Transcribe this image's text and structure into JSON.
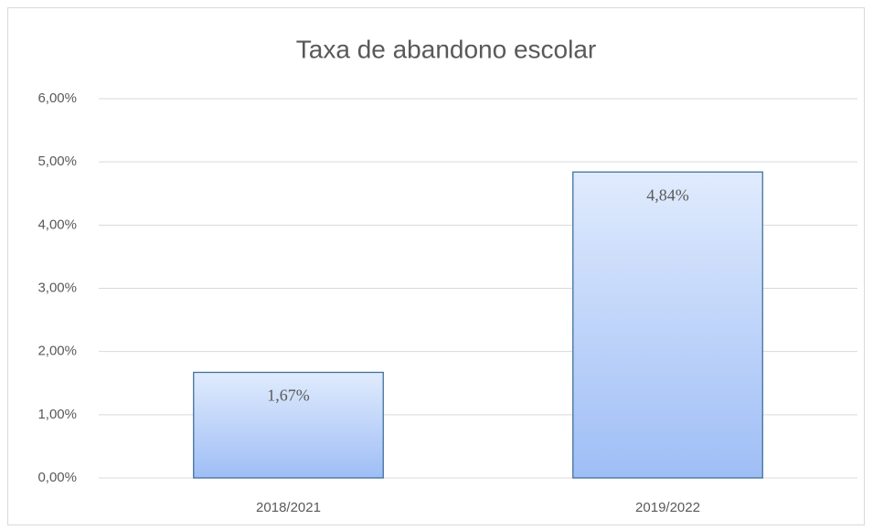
{
  "chart_data": {
    "type": "bar",
    "title": "Taxa de abandono escolar",
    "categories": [
      "2018/2021",
      "2019/2022"
    ],
    "values": [
      1.67,
      4.84
    ],
    "value_labels": [
      "1,67%",
      "4,84%"
    ],
    "colors": [
      "#e0ebfd",
      "#9fbef6"
    ],
    "edge_color": "#41719c",
    "ylim": [
      0,
      6
    ],
    "yticks": [
      {
        "value": 0,
        "label": "0,00%"
      },
      {
        "value": 1,
        "label": "1,00%"
      },
      {
        "value": 2,
        "label": "2,00%"
      },
      {
        "value": 3,
        "label": "3,00%"
      },
      {
        "value": 4,
        "label": "4,00%"
      },
      {
        "value": 5,
        "label": "5,00%"
      },
      {
        "value": 6,
        "label": "6,00%"
      }
    ],
    "grid": true
  }
}
